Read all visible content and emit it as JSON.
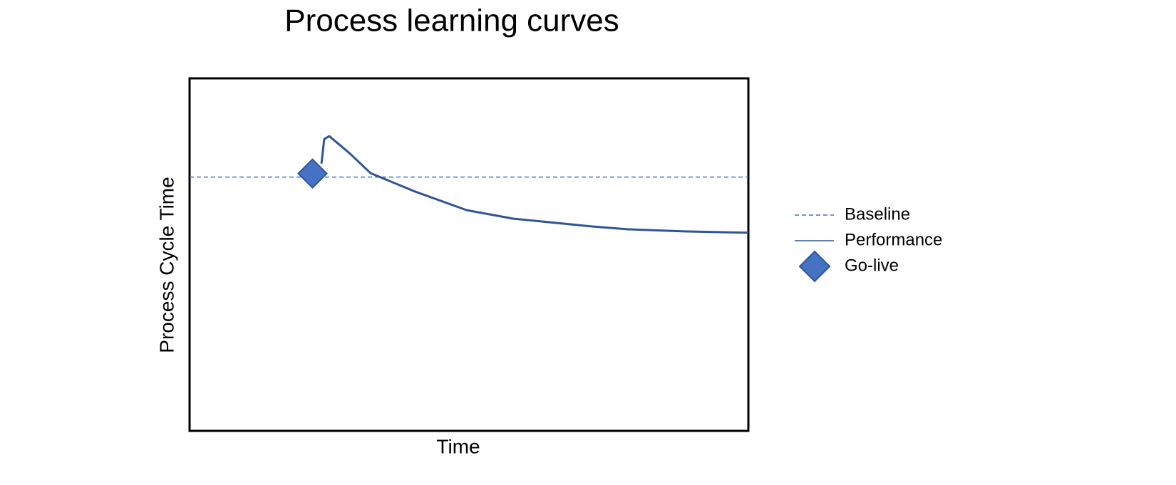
{
  "chart_data": {
    "type": "line",
    "title": "Process learning curves",
    "x_label": "Time",
    "y_label": "Process Cycle Time",
    "xlim": [
      0,
      100
    ],
    "ylim": [
      0,
      100
    ],
    "legend": "right",
    "series": [
      {
        "name": "Baseline",
        "color": "#4472c4",
        "style": "dashed",
        "x": [
          0,
          100
        ],
        "values": [
          72,
          72
        ]
      },
      {
        "name": "Performance",
        "color": "#2f5597",
        "style": "solid",
        "x": [
          23.6,
          24.1,
          25,
          28.6,
          32.4,
          40,
          49.6,
          57.9,
          71.9,
          78.3,
          88.5,
          100
        ],
        "values": [
          75.8,
          82.8,
          83.6,
          78.8,
          73.1,
          68.1,
          62.6,
          60.2,
          58,
          57.2,
          56.6,
          56.2
        ]
      },
      {
        "name": "Go-live",
        "color": "#4472c4",
        "style": "diamond",
        "x": [
          22
        ],
        "values": [
          73
        ]
      }
    ]
  }
}
